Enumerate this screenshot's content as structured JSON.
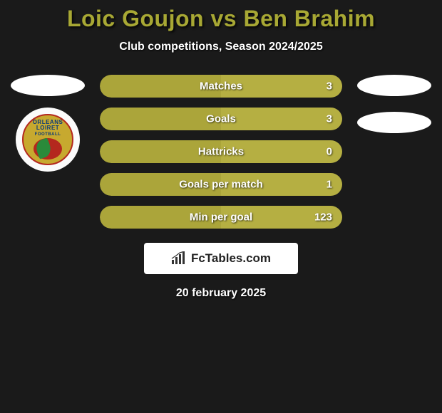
{
  "title": "Loic Goujon vs Ben Brahim",
  "subtitle": "Club competitions, Season 2024/2025",
  "date": "20 february 2025",
  "logo_text": "FcTables.com",
  "colors": {
    "title_color": "#a8a834",
    "background": "#1a1a1a",
    "pill_left": "#aba53a",
    "pill_right": "#b5af42",
    "text": "#ffffff"
  },
  "left_badge": {
    "club": "ORLEANS LOIRET FOOTBALL",
    "outer_bg": "#c7a92f",
    "border": "#b4281e",
    "center": "#b4281e",
    "leaf": "#2a8a3a",
    "text_color": "#0a3a7a"
  },
  "stats": [
    {
      "label": "Matches",
      "value": "3",
      "left_pct": 50
    },
    {
      "label": "Goals",
      "value": "3",
      "left_pct": 50
    },
    {
      "label": "Hattricks",
      "value": "0",
      "left_pct": 50
    },
    {
      "label": "Goals per match",
      "value": "1",
      "left_pct": 50
    },
    {
      "label": "Min per goal",
      "value": "123",
      "left_pct": 50
    }
  ]
}
